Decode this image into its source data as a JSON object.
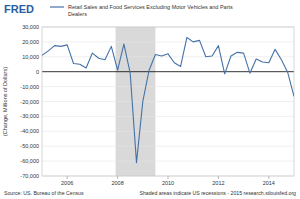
{
  "chart_data": {
    "type": "line",
    "logo": "FRED",
    "series": [
      {
        "name": "Retail Sales and Food Services Excluding Motor Vehicles and Parts Dealers",
        "color": "#4572a7",
        "values": [
          11000,
          14000,
          17500,
          17000,
          18000,
          5500,
          5000,
          2500,
          12500,
          9000,
          8000,
          17000,
          1000,
          18500,
          -1000,
          -61000,
          -20000,
          1000,
          11500,
          10500,
          12000,
          6000,
          3500,
          23000,
          20000,
          21000,
          10000,
          10500,
          17500,
          -1500,
          10500,
          13000,
          12500,
          -1000,
          8500,
          6500,
          6000,
          15000,
          8000,
          -500,
          -16500
        ]
      }
    ],
    "x": [
      2005,
      2005.25,
      2005.5,
      2005.75,
      2006,
      2006.25,
      2006.5,
      2006.75,
      2007,
      2007.25,
      2007.5,
      2007.75,
      2008,
      2008.25,
      2008.5,
      2008.75,
      2009,
      2009.25,
      2009.5,
      2009.75,
      2010,
      2010.25,
      2010.5,
      2010.75,
      2011,
      2011.25,
      2011.5,
      2011.75,
      2012,
      2012.25,
      2012.5,
      2012.75,
      2013,
      2013.25,
      2013.5,
      2013.75,
      2014,
      2014.25,
      2014.5,
      2014.75,
      2015
    ],
    "xlim": [
      2005,
      2015
    ],
    "xticks": [
      2006,
      2008,
      2010,
      2012,
      2014
    ],
    "ylim": [
      -70000,
      30000
    ],
    "yticks": [
      {
        "value": 30000,
        "label": "30,000"
      },
      {
        "value": 20000,
        "label": "20,000"
      },
      {
        "value": 10000,
        "label": "10,000"
      },
      0,
      {
        "value": -10000,
        "label": "-10,000"
      },
      {
        "value": -20000,
        "label": "-20,000"
      },
      {
        "value": -30000,
        "label": "-30,000"
      },
      {
        "value": -40000,
        "label": "-40,000"
      },
      {
        "value": -50000,
        "label": "-50,000"
      },
      {
        "value": -60000,
        "label": "-60,000"
      },
      {
        "value": -70000,
        "label": "-70,000"
      }
    ],
    "y_label": "(Change, Millions of Dollars)",
    "recessions": [
      {
        "start": 2007.92,
        "end": 2009.5
      }
    ],
    "source": "Source: US. Bureau of the Census",
    "note": "Shaded areas indicate US recessions - 2015 research.stlouisfed.org",
    "grid": true
  }
}
